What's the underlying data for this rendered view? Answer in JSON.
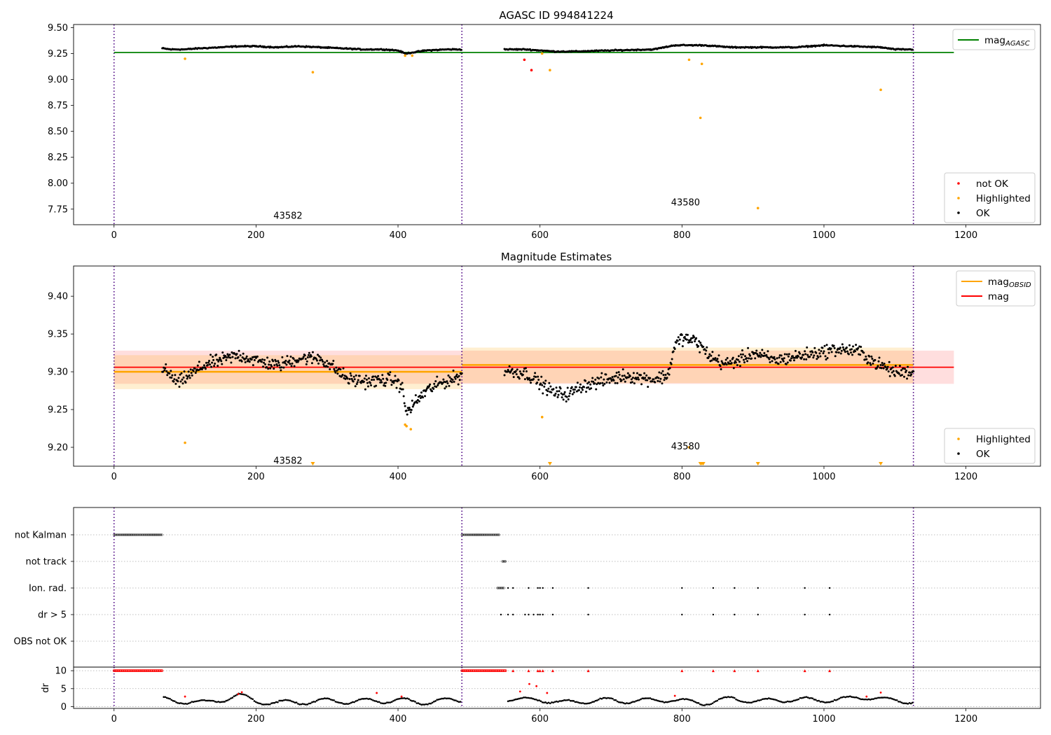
{
  "chart_data": [
    {
      "id": "agasc",
      "type": "scatter",
      "title": "AGASC ID 994841224",
      "xlim": [
        -57,
        1305
      ],
      "ylim": [
        7.6,
        9.53
      ],
      "xticks": [
        0,
        200,
        400,
        600,
        800,
        1000,
        1200
      ],
      "yticks": [
        7.75,
        8.0,
        8.25,
        8.5,
        8.75,
        9.0,
        9.25,
        9.5
      ],
      "ytick_labels": [
        "7.75",
        "8.00",
        "8.25",
        "8.50",
        "8.75",
        "9.00",
        "9.25",
        "9.50"
      ],
      "obs_boundaries": [
        0,
        490,
        1126
      ],
      "obsid_labels": [
        {
          "text": "43582",
          "x": 245,
          "y": 7.69
        },
        {
          "text": "43580",
          "x": 805,
          "y": 7.82
        }
      ],
      "hline": {
        "name": "mag_AGASC",
        "y": 9.26,
        "x": [
          0,
          1183
        ],
        "color": "#008000"
      },
      "legend_upper": {
        "position": "top-right",
        "entries": [
          {
            "label": "mag",
            "sub": "AGASC",
            "color": "#008000",
            "kind": "line"
          }
        ]
      },
      "legend_lower": {
        "position": "bottom-right",
        "entries": [
          {
            "label": "not OK",
            "color": "#ff0000",
            "kind": "dot"
          },
          {
            "label": "Highlighted",
            "color": "#ffa500",
            "kind": "dot"
          },
          {
            "label": "OK",
            "color": "#000000",
            "kind": "dot"
          }
        ]
      },
      "trend": [
        [
          68,
          9.3
        ],
        [
          80,
          9.29
        ],
        [
          100,
          9.29
        ],
        [
          120,
          9.3
        ],
        [
          150,
          9.31
        ],
        [
          175,
          9.32
        ],
        [
          200,
          9.32
        ],
        [
          230,
          9.31
        ],
        [
          260,
          9.32
        ],
        [
          290,
          9.31
        ],
        [
          320,
          9.3
        ],
        [
          350,
          9.29
        ],
        [
          380,
          9.29
        ],
        [
          400,
          9.28
        ],
        [
          410,
          9.25
        ],
        [
          420,
          9.26
        ],
        [
          440,
          9.28
        ],
        [
          470,
          9.29
        ],
        [
          490,
          9.29
        ],
        [
          550,
          9.29
        ],
        [
          580,
          9.29
        ],
        [
          620,
          9.27
        ],
        [
          650,
          9.27
        ],
        [
          700,
          9.28
        ],
        [
          760,
          9.29
        ],
        [
          790,
          9.33
        ],
        [
          830,
          9.33
        ],
        [
          870,
          9.31
        ],
        [
          920,
          9.31
        ],
        [
          960,
          9.31
        ],
        [
          1000,
          9.33
        ],
        [
          1040,
          9.32
        ],
        [
          1080,
          9.31
        ],
        [
          1100,
          9.29
        ],
        [
          1126,
          9.29
        ]
      ],
      "segments": [
        [
          68,
          490
        ],
        [
          550,
          1126
        ]
      ],
      "scatter": 0.008,
      "highlighted": [
        [
          100,
          9.2
        ],
        [
          280,
          9.07
        ],
        [
          410,
          9.23
        ],
        [
          420,
          9.23
        ],
        [
          603,
          9.25
        ],
        [
          614,
          9.09
        ],
        [
          810,
          9.19
        ],
        [
          826,
          8.63
        ],
        [
          828,
          9.15
        ],
        [
          907,
          7.76
        ],
        [
          1080,
          8.9
        ]
      ],
      "not_ok": [
        [
          578,
          9.19
        ],
        [
          588,
          9.09
        ]
      ]
    },
    {
      "id": "mag",
      "type": "scatter",
      "title": "Magnitude Estimates",
      "xlim": [
        -57,
        1305
      ],
      "ylim": [
        9.175,
        9.44
      ],
      "xticks": [
        0,
        200,
        400,
        600,
        800,
        1000,
        1200
      ],
      "yticks": [
        9.2,
        9.25,
        9.3,
        9.35,
        9.4
      ],
      "ytick_labels": [
        "9.20",
        "9.25",
        "9.30",
        "9.35",
        "9.40"
      ],
      "obs_boundaries": [
        0,
        490,
        1126
      ],
      "obsid_labels": [
        {
          "text": "43582",
          "x": 245,
          "y": 9.183
        },
        {
          "text": "43580",
          "x": 805,
          "y": 9.202
        }
      ],
      "mag": {
        "y": 9.306,
        "band": [
          9.284,
          9.328
        ],
        "x": [
          0,
          1183
        ],
        "color": "#ff0000"
      },
      "mag_obsid": [
        {
          "y": 9.3,
          "band": [
            9.277,
            9.322
          ],
          "x": [
            0,
            490
          ]
        },
        {
          "y": 9.309,
          "band": [
            9.285,
            9.332
          ],
          "x": [
            490,
            1126
          ]
        }
      ],
      "legend_upper": {
        "position": "top-right",
        "entries": [
          {
            "label": "mag",
            "sub": "OBSID",
            "color": "#ffa500",
            "kind": "line"
          },
          {
            "label": "mag",
            "sub": "",
            "color": "#ff0000",
            "kind": "line"
          }
        ]
      },
      "legend_lower": {
        "position": "bottom-right",
        "entries": [
          {
            "label": "Highlighted",
            "color": "#ffa500",
            "kind": "dot"
          },
          {
            "label": "OK",
            "color": "#000000",
            "kind": "dot"
          }
        ]
      },
      "trend": [
        [
          68,
          9.305
        ],
        [
          90,
          9.285
        ],
        [
          110,
          9.298
        ],
        [
          130,
          9.31
        ],
        [
          150,
          9.315
        ],
        [
          175,
          9.322
        ],
        [
          200,
          9.315
        ],
        [
          230,
          9.308
        ],
        [
          260,
          9.318
        ],
        [
          290,
          9.318
        ],
        [
          310,
          9.305
        ],
        [
          330,
          9.29
        ],
        [
          360,
          9.287
        ],
        [
          390,
          9.29
        ],
        [
          405,
          9.282
        ],
        [
          412,
          9.245
        ],
        [
          420,
          9.255
        ],
        [
          440,
          9.275
        ],
        [
          460,
          9.285
        ],
        [
          490,
          9.295
        ],
        [
          550,
          9.302
        ],
        [
          580,
          9.298
        ],
        [
          600,
          9.285
        ],
        [
          620,
          9.272
        ],
        [
          640,
          9.27
        ],
        [
          660,
          9.282
        ],
        [
          690,
          9.288
        ],
        [
          720,
          9.295
        ],
        [
          760,
          9.29
        ],
        [
          780,
          9.295
        ],
        [
          790,
          9.335
        ],
        [
          800,
          9.345
        ],
        [
          820,
          9.34
        ],
        [
          840,
          9.32
        ],
        [
          860,
          9.31
        ],
        [
          880,
          9.315
        ],
        [
          900,
          9.325
        ],
        [
          930,
          9.315
        ],
        [
          960,
          9.32
        ],
        [
          990,
          9.325
        ],
        [
          1020,
          9.33
        ],
        [
          1050,
          9.327
        ],
        [
          1075,
          9.31
        ],
        [
          1100,
          9.3
        ],
        [
          1126,
          9.3
        ]
      ],
      "segments": [
        [
          68,
          490
        ],
        [
          550,
          1126
        ]
      ],
      "scatter": 0.013,
      "highlighted": [
        [
          100,
          9.206
        ],
        [
          410,
          9.23
        ],
        [
          412,
          9.228
        ],
        [
          418,
          9.224
        ],
        [
          603,
          9.24
        ],
        [
          810,
          9.2
        ]
      ],
      "off_scale_markers": [
        280,
        614,
        826,
        828,
        830,
        907,
        1080
      ]
    },
    {
      "id": "flags",
      "type": "scatter",
      "title": "",
      "xlim": [
        -57,
        1305
      ],
      "xticks": [
        0,
        200,
        400,
        600,
        800,
        1000,
        1200
      ],
      "obs_boundaries": [
        0,
        490,
        1126
      ],
      "categories": [
        "not Kalman",
        "not track",
        "Ion. rad.",
        "dr > 5",
        "OBS not OK"
      ],
      "flags": [
        {
          "row": "not Kalman",
          "ranges": [
            [
              0,
              68
            ],
            [
              490,
              543
            ]
          ],
          "points": []
        },
        {
          "row": "not track",
          "ranges": [
            [
              547,
              552
            ]
          ],
          "points": []
        },
        {
          "row": "Ion. rad.",
          "ranges": [
            [
              540,
              550
            ]
          ],
          "points": [
            555,
            562,
            584,
            597,
            600,
            604,
            618,
            668,
            800,
            844,
            874,
            907,
            973,
            1008
          ]
        },
        {
          "row": "dr > 5",
          "ranges": [],
          "points": [
            545,
            555,
            562,
            579,
            584,
            591,
            597,
            600,
            604,
            618,
            668,
            800,
            844,
            874,
            907,
            973,
            1008
          ]
        },
        {
          "row": "OBS not OK",
          "ranges": [],
          "points": []
        }
      ]
    },
    {
      "id": "dr",
      "type": "scatter",
      "title": "",
      "ylabel": "dr",
      "xlim": [
        -57,
        1305
      ],
      "ylim": [
        -0.5,
        11
      ],
      "xticks": [
        0,
        200,
        400,
        600,
        800,
        1000,
        1200
      ],
      "yticks": [
        0,
        5,
        10
      ],
      "ytick_labels": [
        "0",
        "5",
        "10"
      ],
      "obs_boundaries": [
        0,
        490,
        1126
      ],
      "clipped_10": {
        "ranges": [
          [
            0,
            68
          ],
          [
            490,
            552
          ]
        ],
        "points": [
          562,
          584,
          597,
          600,
          604,
          618,
          668,
          800,
          844,
          874,
          907,
          973,
          1008
        ]
      },
      "trend": [
        [
          70,
          2
        ],
        [
          85,
          1.5
        ],
        [
          110,
          1.5
        ],
        [
          130,
          1
        ],
        [
          150,
          1.8
        ],
        [
          175,
          3.2
        ],
        [
          200,
          1.5
        ],
        [
          230,
          1
        ],
        [
          270,
          1.3
        ],
        [
          300,
          1.6
        ],
        [
          330,
          1.4
        ],
        [
          370,
          1.6
        ],
        [
          400,
          1.8
        ],
        [
          430,
          1.2
        ],
        [
          460,
          1.6
        ],
        [
          490,
          1.8
        ],
        [
          555,
          2.2
        ],
        [
          575,
          1.8
        ],
        [
          600,
          2
        ],
        [
          630,
          1
        ],
        [
          660,
          1.5
        ],
        [
          700,
          1.8
        ],
        [
          740,
          1.5
        ],
        [
          780,
          2
        ],
        [
          800,
          1.5
        ],
        [
          830,
          1
        ],
        [
          870,
          2.2
        ],
        [
          910,
          1.5
        ],
        [
          950,
          2
        ],
        [
          990,
          1.8
        ],
        [
          1030,
          2
        ],
        [
          1060,
          2.8
        ],
        [
          1090,
          1.8
        ],
        [
          1126,
          1.5
        ]
      ],
      "segments": [
        [
          70,
          490
        ],
        [
          555,
          1126
        ]
      ],
      "red_points": [
        [
          100,
          2.8
        ],
        [
          175,
          3.5
        ],
        [
          180,
          4
        ],
        [
          370,
          3.8
        ],
        [
          405,
          2.8
        ],
        [
          572,
          4.2
        ],
        [
          585,
          6.3
        ],
        [
          595,
          5.7
        ],
        [
          610,
          3.8
        ],
        [
          790,
          3
        ],
        [
          1060,
          2.8
        ],
        [
          1080,
          3.9
        ]
      ]
    }
  ]
}
